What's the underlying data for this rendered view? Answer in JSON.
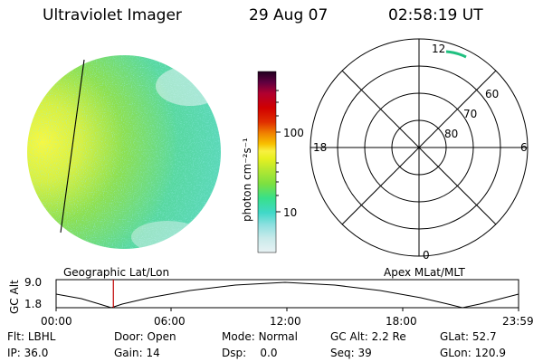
{
  "header": {
    "instrument": "Ultraviolet Imager",
    "date": "29 Aug 07",
    "time": "02:58:19 UT"
  },
  "colorbar": {
    "unit_label": "photon cm⁻²s⁻¹",
    "ticks": [
      "100",
      "10"
    ],
    "scale": "log",
    "colors": [
      "#e8f2f4",
      "#c8eaea",
      "#90e0e0",
      "#40d8c8",
      "#38e08a",
      "#7de040",
      "#b8e830",
      "#e8f020",
      "#f8f040",
      "#f8c000",
      "#f08000",
      "#e03000",
      "#d00000",
      "#b00030",
      "#600040",
      "#200020"
    ]
  },
  "left_panel": {
    "label": "Geographic Lat/Lon"
  },
  "polar_plot": {
    "label": "Apex MLat/MLT",
    "mlt_labels": {
      "top": "12",
      "left": "18",
      "right": "6",
      "bottom": "0"
    },
    "lat_labels": [
      "60",
      "70",
      "80"
    ]
  },
  "alt_plot": {
    "ylabel": "GC Alt",
    "yticks": [
      "9.0",
      "1.8"
    ],
    "xticks": [
      "00:00",
      "06:00",
      "12:00",
      "18:00",
      "23:59"
    ],
    "marker_color": "#c00000",
    "marker_time_fraction": 0.1238
  },
  "status": {
    "row1": [
      {
        "label": "Flt:",
        "value": "LBHL"
      },
      {
        "label": "Door:",
        "value": "Open"
      },
      {
        "label": "Mode:",
        "value": "Normal"
      },
      {
        "label": "GC Alt:",
        "value": "2.2 Re"
      },
      {
        "label": "GLat:",
        "value": "52.7"
      }
    ],
    "row2": [
      {
        "label": "IP:",
        "value": "36.0"
      },
      {
        "label": "Gain:",
        "value": "14"
      },
      {
        "label": "Dsp:",
        "value": "0.0"
      },
      {
        "label": "Seq:",
        "value": "39"
      },
      {
        "label": "GLon:",
        "value": "120.9"
      }
    ]
  }
}
